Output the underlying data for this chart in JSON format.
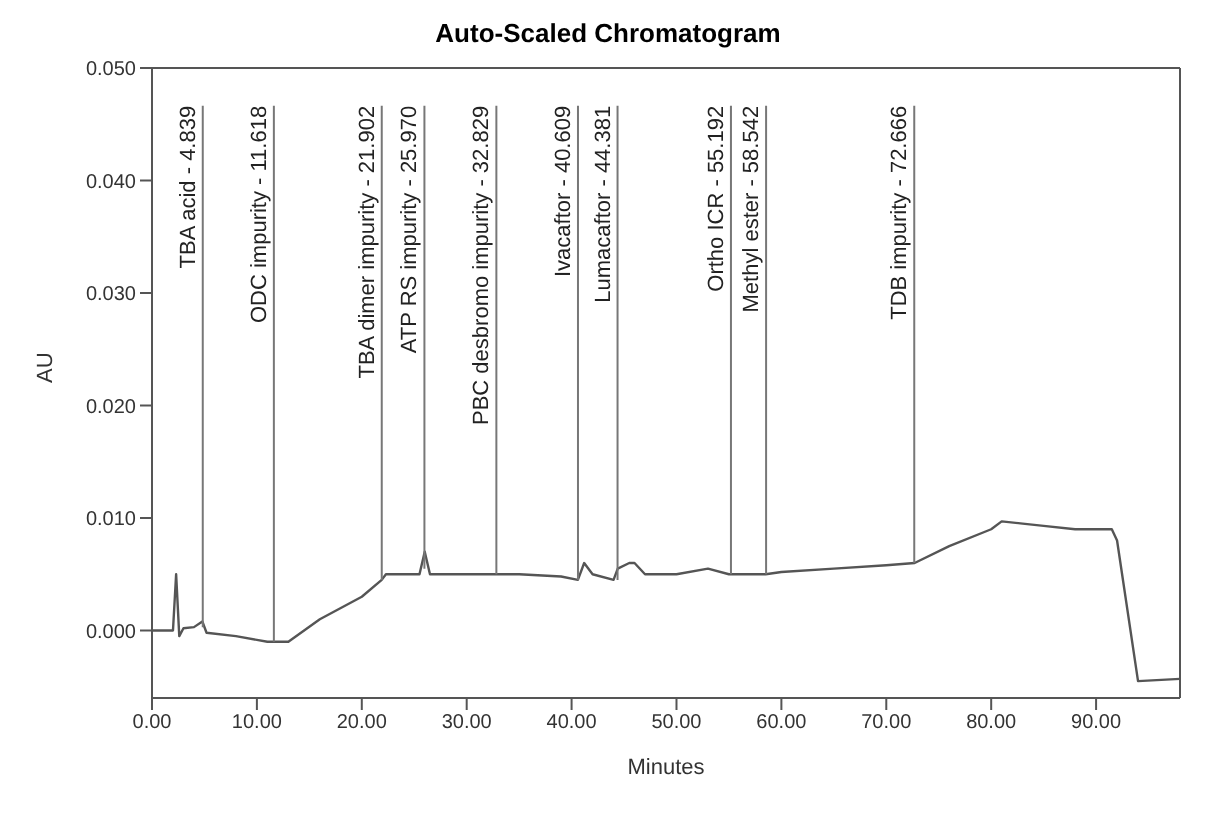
{
  "chart_data": {
    "type": "line",
    "title": "Auto-Scaled Chromatogram",
    "xlabel": "Minutes",
    "ylabel": "AU",
    "xlim": [
      0,
      98
    ],
    "ylim": [
      -0.006,
      0.05
    ],
    "xticks": [
      {
        "value": 0,
        "label": "0.00"
      },
      {
        "value": 10,
        "label": "10.00"
      },
      {
        "value": 20,
        "label": "20.00"
      },
      {
        "value": 30,
        "label": "30.00"
      },
      {
        "value": 40,
        "label": "40.00"
      },
      {
        "value": 50,
        "label": "50.00"
      },
      {
        "value": 60,
        "label": "60.00"
      },
      {
        "value": 70,
        "label": "70.00"
      },
      {
        "value": 80,
        "label": "80.00"
      },
      {
        "value": 90,
        "label": "90.00"
      }
    ],
    "yticks": [
      {
        "value": 0,
        "label": "0.000"
      },
      {
        "value": 0.01,
        "label": "0.010"
      },
      {
        "value": 0.02,
        "label": "0.020"
      },
      {
        "value": 0.03,
        "label": "0.030"
      },
      {
        "value": 0.04,
        "label": "0.040"
      },
      {
        "value": 0.05,
        "label": "0.050"
      }
    ],
    "grid": false,
    "legend": false,
    "marker": "none",
    "line_style": "solid",
    "series": [
      {
        "color": "#555555",
        "x": [
          0,
          1,
          2,
          2.3,
          2.6,
          3,
          4,
          4.8,
          5.2,
          8,
          11,
          13,
          16,
          20,
          21.9,
          22.3,
          25.5,
          26,
          26.5,
          30,
          35,
          39,
          40.6,
          41.2,
          42,
          44,
          44.4,
          45.5,
          46,
          47,
          50,
          53,
          55,
          58.5,
          60,
          65,
          70,
          72.7,
          76,
          80,
          81,
          83,
          85,
          88,
          91.5,
          92,
          94,
          98
        ],
        "values": [
          0,
          0,
          0,
          0.005,
          -0.0005,
          0.0002,
          0.0003,
          0.0008,
          -0.0002,
          -0.0005,
          -0.001,
          -0.001,
          0.001,
          0.003,
          0.0045,
          0.005,
          0.005,
          0.007,
          0.005,
          0.005,
          0.005,
          0.0048,
          0.0045,
          0.006,
          0.005,
          0.0045,
          0.0055,
          0.006,
          0.006,
          0.005,
          0.005,
          0.0055,
          0.005,
          0.005,
          0.0052,
          0.0055,
          0.0058,
          0.006,
          0.0075,
          0.009,
          0.0097,
          0.0095,
          0.0093,
          0.009,
          0.009,
          0.008,
          -0.0045,
          -0.0043
        ]
      }
    ],
    "annotations": [
      {
        "text": "TBA acid - 4.839",
        "x": 4.839,
        "y": 0.0003
      },
      {
        "text": "ODC impurity - 11.618",
        "x": 11.618,
        "y": -0.001
      },
      {
        "text": "TBA dimer impurity - 21.902",
        "x": 21.902,
        "y": 0.0045
      },
      {
        "text": "ATP RS impurity - 25.970",
        "x": 25.97,
        "y": 0.0055
      },
      {
        "text": "PBC desbromo impurity - 32.829",
        "x": 32.829,
        "y": 0.005
      },
      {
        "text": "Ivacaftor - 40.609",
        "x": 40.609,
        "y": 0.0045
      },
      {
        "text": "Lumacaftor - 44.381",
        "x": 44.381,
        "y": 0.0045
      },
      {
        "text": "Ortho ICR - 55.192",
        "x": 55.192,
        "y": 0.005
      },
      {
        "text": "Methyl ester - 58.542",
        "x": 58.542,
        "y": 0.005
      },
      {
        "text": "TDB impurity - 72.666",
        "x": 72.666,
        "y": 0.006
      }
    ]
  }
}
